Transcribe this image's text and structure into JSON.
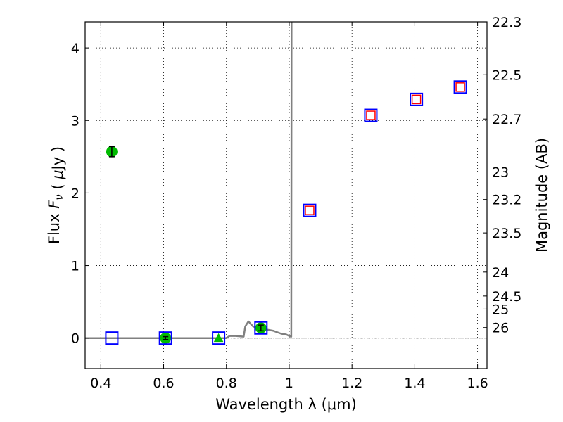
{
  "chart_data": {
    "type": "scatter",
    "title": "",
    "xlabel": "Wavelength  λ (μm)",
    "ylabel": "Flux  Fν  ( μJy )",
    "y2label": "Magnitude (AB)",
    "xlim": [
      0.35,
      1.63
    ],
    "ylim": [
      -0.42,
      4.36
    ],
    "grid": true,
    "x_ticks": [
      0.4,
      0.6,
      0.8,
      1.0,
      1.2,
      1.4,
      1.6
    ],
    "x_tick_labels": [
      "0.4",
      "0.6",
      "0.8",
      "1",
      "1.2",
      "1.4",
      "1.6"
    ],
    "y_ticks": [
      0,
      1,
      2,
      3,
      4
    ],
    "y_tick_labels": [
      "0",
      "1",
      "2",
      "3",
      "4"
    ],
    "y2_ticks": [
      {
        "label": "22.3",
        "flux": 4.36
      },
      {
        "label": "22.5",
        "flux": 3.63
      },
      {
        "label": "22.7",
        "flux": 3.02
      },
      {
        "label": "23",
        "flux": 2.29
      },
      {
        "label": "23.2",
        "flux": 1.91
      },
      {
        "label": "23.5",
        "flux": 1.45
      },
      {
        "label": "24",
        "flux": 0.91
      },
      {
        "label": "24.5",
        "flux": 0.58
      },
      {
        "label": "25",
        "flux": 0.4
      },
      {
        "label": "26",
        "flux": 0.145
      }
    ],
    "sed_model": {
      "x": [
        0.35,
        0.8,
        0.81,
        0.83,
        0.855,
        0.86,
        0.87,
        0.885,
        0.9,
        0.925,
        0.95,
        0.975,
        0.99,
        1.005,
        1.0065,
        1.0075
      ],
      "y": [
        0.0,
        0.0,
        0.03,
        0.03,
        0.02,
        0.16,
        0.23,
        0.16,
        0.14,
        0.12,
        0.1,
        0.06,
        0.05,
        0.02,
        0.02,
        4.36
      ],
      "color": "#808080"
    },
    "observed": [
      {
        "x": 0.435,
        "y": 2.57,
        "err": 0.07,
        "marker": "circle"
      },
      {
        "x": 0.606,
        "y": 0.0,
        "err": 0.02,
        "marker": "circle"
      },
      {
        "x": 0.775,
        "y": 0.0,
        "err": 0.0,
        "marker": "triangle"
      },
      {
        "x": 0.91,
        "y": 0.14,
        "err": 0.04,
        "marker": "circle"
      }
    ],
    "observed_color": "#00bb00",
    "model_photometry": [
      {
        "x": 0.435,
        "y": 0.0
      },
      {
        "x": 0.606,
        "y": 0.0
      },
      {
        "x": 0.775,
        "y": 0.0
      },
      {
        "x": 0.91,
        "y": 0.14
      },
      {
        "x": 1.065,
        "y": 1.76
      },
      {
        "x": 1.26,
        "y": 3.07
      },
      {
        "x": 1.405,
        "y": 3.29
      },
      {
        "x": 1.545,
        "y": 3.46
      }
    ],
    "model_color": "#0000ff",
    "upper_limits": [
      {
        "x": 1.065,
        "y": 1.76
      },
      {
        "x": 1.26,
        "y": 3.07
      },
      {
        "x": 1.405,
        "y": 3.29
      },
      {
        "x": 1.545,
        "y": 3.46
      }
    ],
    "upper_limit_color": "#ff0000"
  }
}
